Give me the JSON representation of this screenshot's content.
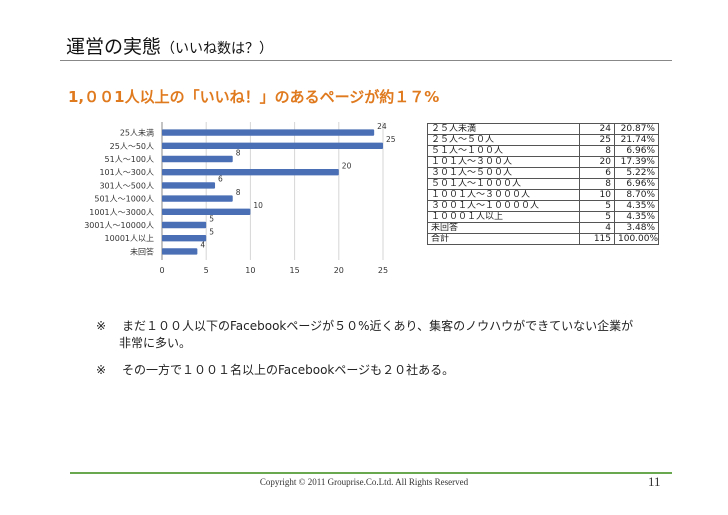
{
  "slide": {
    "title": "運営の実態",
    "title_sub": "（いいね数は？）",
    "subtitle": "1,００1人以上の「いいね！」のあるページが約１７%",
    "notes": [
      {
        "mark": "※",
        "line1": "まだ１００人以下のFacebookページが５０%近くあり、集客のノウハウができていない企業が",
        "line2": "非常に多い。"
      },
      {
        "mark": "※",
        "line1": "その一方で１００１名以上のFacebookページも２０社ある。",
        "line2": ""
      }
    ],
    "copyright": "Copyright ©  2011 Grouprise.Co.Ltd. All Rights Reserved",
    "page_number": "11",
    "colors": {
      "bar": "#4a6fb5",
      "accent": "#e07a1f",
      "rule": "#6aa84f"
    }
  },
  "chart_data": {
    "type": "bar",
    "orientation": "horizontal",
    "categories": [
      "25人未満",
      "25人～50人",
      "51人～100人",
      "101人～300人",
      "301人～500人",
      "501人～1000人",
      "1001人～3000人",
      "3001人～10000人",
      "10001人以上",
      "未回答"
    ],
    "values": [
      24,
      25,
      8,
      20,
      6,
      8,
      10,
      5,
      5,
      4
    ],
    "xticks": [
      "0",
      "5",
      "10",
      "15",
      "20",
      "25"
    ],
    "xlim": [
      0,
      25
    ]
  },
  "table": {
    "rows": [
      {
        "label": "２５人未満",
        "count": "24",
        "pct": "20.87%"
      },
      {
        "label": "２５人～５０人",
        "count": "25",
        "pct": "21.74%"
      },
      {
        "label": "５１人～１００人",
        "count": "8",
        "pct": "6.96%"
      },
      {
        "label": "１０１人～３００人",
        "count": "20",
        "pct": "17.39%"
      },
      {
        "label": "３０１人～５００人",
        "count": "6",
        "pct": "5.22%"
      },
      {
        "label": "５０１人～１０００人",
        "count": "8",
        "pct": "6.96%"
      },
      {
        "label": "１００１人～３０００人",
        "count": "10",
        "pct": "8.70%"
      },
      {
        "label": "３００１人～１００００人",
        "count": "5",
        "pct": "4.35%"
      },
      {
        "label": "１０００１人以上",
        "count": "5",
        "pct": "4.35%"
      },
      {
        "label": "未回答",
        "count": "4",
        "pct": "3.48%"
      },
      {
        "label": "合計",
        "count": "115",
        "pct": "100.00%"
      }
    ]
  }
}
